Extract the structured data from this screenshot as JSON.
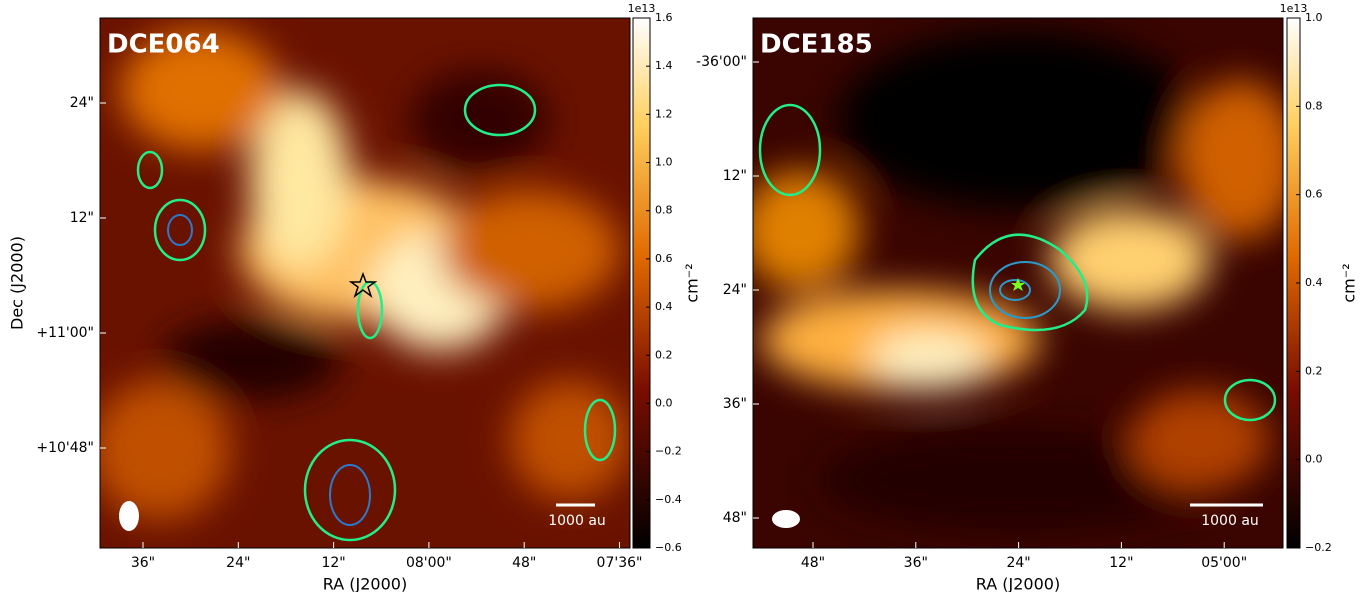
{
  "chart_data": [
    {
      "type": "image",
      "title": "DCE064",
      "xlabel": "RA (J2000)",
      "ylabel": "Dec (J2000)",
      "x_labels": [
        "36\"",
        "24\"",
        "12\"",
        "08'00\"",
        "48\"",
        "07'36\""
      ],
      "y_labels": [
        "24\"",
        "12\"",
        "+11'00\"",
        "+10'48\""
      ],
      "scale_bar": "1000 au",
      "colorbar": {
        "offset": "1e13",
        "label": "cm⁻²",
        "lim": [
          -0.6,
          1.6
        ],
        "ticks": [
          1.6,
          1.4,
          1.2,
          {
            "value": 1,
            "label": "1.0"
          },
          0.8,
          0.6,
          0.4,
          0.2,
          {
            "value": 0,
            "label": "0.0"
          },
          {
            "value": -0.2,
            "label": "−0.2"
          },
          {
            "value": -0.4,
            "label": "−0.4"
          },
          {
            "value": -0.6,
            "label": "−0.6"
          }
        ]
      }
    },
    {
      "type": "image",
      "title": "DCE185",
      "xlabel": "RA (J2000)",
      "x_labels": [
        "48\"",
        "36\"",
        "24\"",
        "12\"",
        "05'00\""
      ],
      "y_labels": [
        "-36'00\"",
        "12\"",
        "24\"",
        "36\"",
        "48\""
      ],
      "scale_bar": "1000 au",
      "colorbar": {
        "offset": "1e13",
        "label": "cm⁻²",
        "lim": [
          -0.2,
          1
        ],
        "ticks": [
          {
            "value": 1,
            "label": "1.0"
          },
          0.8,
          0.6,
          0.4,
          0.2,
          {
            "value": 0,
            "label": "0.0"
          },
          {
            "value": -0.2,
            "label": "−0.2"
          }
        ]
      }
    }
  ]
}
